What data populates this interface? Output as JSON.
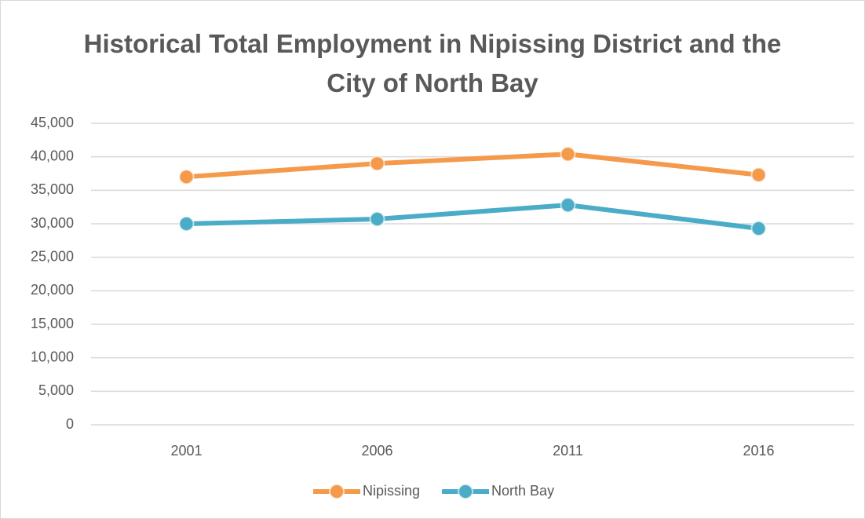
{
  "chart_data": {
    "type": "line",
    "title": "Historical Total Employment in Nipissing District and the City of North Bay",
    "categories": [
      "2001",
      "2006",
      "2011",
      "2016"
    ],
    "series": [
      {
        "name": "Nipissing",
        "color": "#f59a4b",
        "values": [
          37000,
          39000,
          40400,
          37300
        ]
      },
      {
        "name": "North Bay",
        "color": "#4aacc6",
        "values": [
          30000,
          30700,
          32800,
          29300
        ]
      }
    ],
    "ylim": [
      0,
      45000
    ],
    "yticks": [
      0,
      {
        "value": 5000,
        "label": "5,000"
      },
      {
        "value": 10000,
        "label": "10,000"
      },
      {
        "value": 15000,
        "label": "15,000"
      },
      {
        "value": 20000,
        "label": "20,000"
      },
      {
        "value": 25000,
        "label": "25,000"
      },
      {
        "value": 30000,
        "label": "30,000"
      },
      {
        "value": 35000,
        "label": "35,000"
      },
      {
        "value": 40000,
        "label": "40,000"
      },
      {
        "value": 45000,
        "label": "45,000"
      }
    ],
    "grid": true,
    "legend": "bottom"
  }
}
